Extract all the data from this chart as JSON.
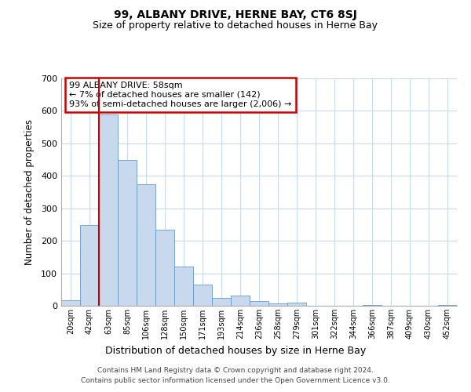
{
  "title": "99, ALBANY DRIVE, HERNE BAY, CT6 8SJ",
  "subtitle": "Size of property relative to detached houses in Herne Bay",
  "xlabel": "Distribution of detached houses by size in Herne Bay",
  "ylabel": "Number of detached properties",
  "bin_labels": [
    "20sqm",
    "42sqm",
    "63sqm",
    "85sqm",
    "106sqm",
    "128sqm",
    "150sqm",
    "171sqm",
    "193sqm",
    "214sqm",
    "236sqm",
    "258sqm",
    "279sqm",
    "301sqm",
    "322sqm",
    "344sqm",
    "366sqm",
    "387sqm",
    "409sqm",
    "430sqm",
    "452sqm"
  ],
  "bar_heights": [
    18,
    248,
    590,
    450,
    373,
    235,
    120,
    66,
    25,
    31,
    14,
    8,
    10,
    0,
    0,
    0,
    3,
    0,
    0,
    0,
    2
  ],
  "bar_color": "#c8d8ed",
  "bar_edge_color": "#6699cc",
  "vline_color": "#cc0000",
  "annotation_title": "99 ALBANY DRIVE: 58sqm",
  "annotation_line1": "← 7% of detached houses are smaller (142)",
  "annotation_line2": "93% of semi-detached houses are larger (2,006) →",
  "annotation_box_color": "#cc0000",
  "ylim": [
    0,
    700
  ],
  "yticks": [
    0,
    100,
    200,
    300,
    400,
    500,
    600,
    700
  ],
  "footnote1": "Contains HM Land Registry data © Crown copyright and database right 2024.",
  "footnote2": "Contains public sector information licensed under the Open Government Licence v3.0.",
  "bg_color": "#ffffff",
  "grid_color": "#c8d8ee"
}
